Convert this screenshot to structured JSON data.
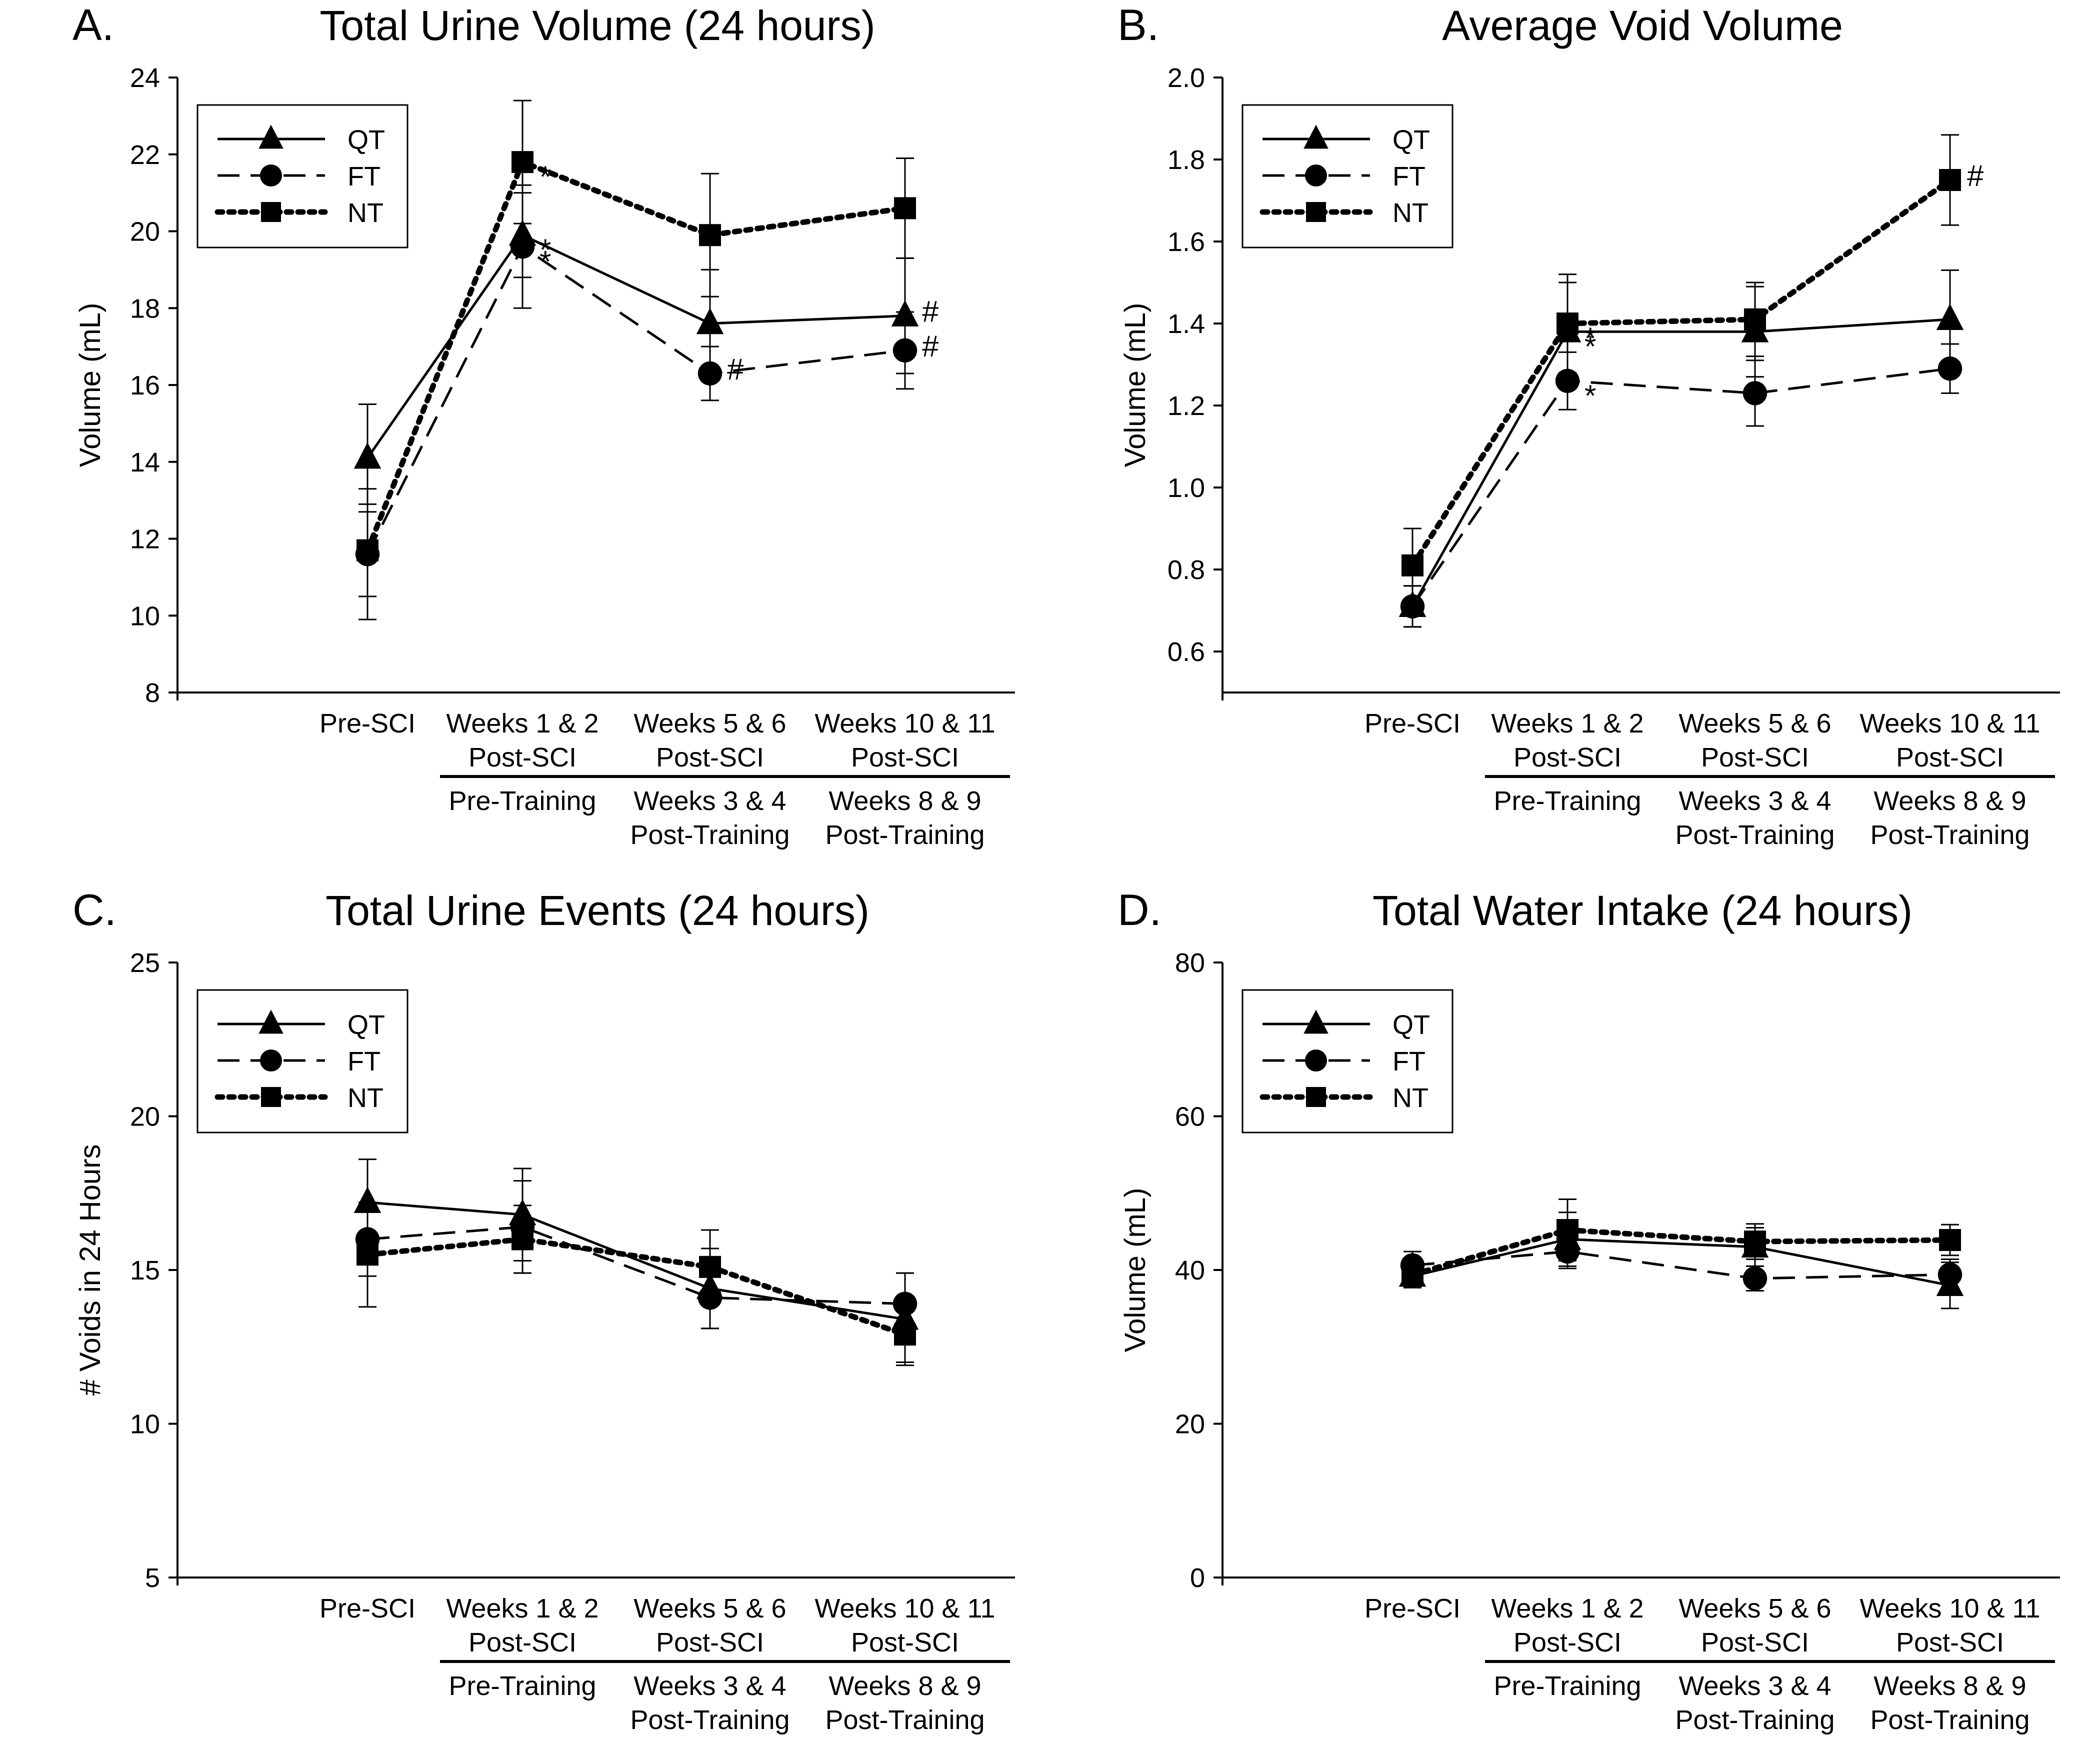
{
  "figure": {
    "panels": [
      "A",
      "B",
      "C",
      "D"
    ]
  },
  "chart_data": [
    {
      "id": "A",
      "letter": "A.",
      "type": "line",
      "title": "Total Urine Volume (24 hours)",
      "ylabel": "Volume (mL)",
      "xlabel": "",
      "ylim": [
        8,
        24
      ],
      "yticks": [
        8,
        10,
        12,
        14,
        16,
        18,
        20,
        22,
        24
      ],
      "categories": [
        [
          "Pre-SCI"
        ],
        [
          "Weeks 1 & 2",
          "Post-SCI"
        ],
        [
          "Weeks 5 & 6",
          "Post-SCI"
        ],
        [
          "Weeks 10 & 11",
          "Post-SCI"
        ]
      ],
      "training_labels": [
        [
          "Pre-Training"
        ],
        [
          "Weeks 3 & 4",
          "Post-Training"
        ],
        [
          "Weeks 8 & 9",
          "Post-Training"
        ]
      ],
      "legend": {
        "position": "top-left",
        "entries": [
          "QT",
          "FT",
          "NT"
        ]
      },
      "series": [
        {
          "name": "QT",
          "marker": "triangle",
          "dash": "solid",
          "values": [
            14.1,
            19.9,
            17.6,
            17.8
          ],
          "errors": [
            1.4,
            1.1,
            1.4,
            1.5
          ]
        },
        {
          "name": "FT",
          "marker": "circle",
          "dash": "dashed",
          "values": [
            11.6,
            19.6,
            16.3,
            16.9
          ],
          "errors": [
            1.7,
            1.6,
            0.7,
            1.0
          ]
        },
        {
          "name": "NT",
          "marker": "square",
          "dash": "dotted",
          "values": [
            11.7,
            21.8,
            19.9,
            20.6
          ],
          "errors": [
            1.2,
            1.6,
            1.6,
            1.3
          ]
        }
      ],
      "annotations": [
        {
          "text": "*",
          "series": "NT",
          "index": 1
        },
        {
          "text": "*",
          "series": "QT",
          "index": 1
        },
        {
          "text": "*",
          "series": "FT",
          "index": 1
        },
        {
          "text": "#",
          "series": "FT",
          "index": 2
        },
        {
          "text": "#",
          "series": "QT",
          "index": 3
        },
        {
          "text": "#",
          "series": "FT",
          "index": 3
        }
      ]
    },
    {
      "id": "B",
      "letter": "B.",
      "type": "line",
      "title": "Average Void Volume",
      "ylabel": "Volume (mL)",
      "xlabel": "",
      "ylim": [
        0.5,
        2.0
      ],
      "yticks": [
        "0.6",
        "0.8",
        "1.0",
        "1.2",
        "1.4",
        "1.6",
        "1.8",
        "2.0"
      ],
      "categories": [
        [
          "Pre-SCI"
        ],
        [
          "Weeks 1 & 2",
          "Post-SCI"
        ],
        [
          "Weeks 5 & 6",
          "Post-SCI"
        ],
        [
          "Weeks 10 & 11",
          "Post-SCI"
        ]
      ],
      "training_labels": [
        [
          "Pre-Training"
        ],
        [
          "Weeks 3 & 4",
          "Post-Training"
        ],
        [
          "Weeks 8 & 9",
          "Post-Training"
        ]
      ],
      "legend": {
        "position": "top-left",
        "entries": [
          "QT",
          "FT",
          "NT"
        ]
      },
      "series": [
        {
          "name": "QT",
          "marker": "triangle",
          "dash": "solid",
          "values": [
            0.71,
            1.38,
            1.38,
            1.41
          ],
          "errors": [
            0.05,
            0.12,
            0.11,
            0.12
          ]
        },
        {
          "name": "FT",
          "marker": "circle",
          "dash": "dashed",
          "values": [
            0.71,
            1.26,
            1.23,
            1.29
          ],
          "errors": [
            0.05,
            0.07,
            0.08,
            0.06
          ]
        },
        {
          "name": "NT",
          "marker": "square",
          "dash": "dotted",
          "values": [
            0.81,
            1.4,
            1.41,
            1.75
          ],
          "errors": [
            0.09,
            0.12,
            0.09,
            0.11
          ]
        }
      ],
      "annotations": [
        {
          "text": "*",
          "series": "NT",
          "index": 1
        },
        {
          "text": "*",
          "series": "QT",
          "index": 1
        },
        {
          "text": "*",
          "series": "FT",
          "index": 1
        },
        {
          "text": "#",
          "series": "NT",
          "index": 3
        }
      ]
    },
    {
      "id": "C",
      "letter": "C.",
      "type": "line",
      "title": "Total Urine Events (24 hours)",
      "ylabel": "# Voids in 24 Hours",
      "xlabel": "",
      "ylim": [
        5,
        25
      ],
      "yticks": [
        5,
        10,
        15,
        20,
        25
      ],
      "categories": [
        [
          "Pre-SCI"
        ],
        [
          "Weeks 1 & 2",
          "Post-SCI"
        ],
        [
          "Weeks 5 & 6",
          "Post-SCI"
        ],
        [
          "Weeks 10 & 11",
          "Post-SCI"
        ]
      ],
      "training_labels": [
        [
          "Pre-Training"
        ],
        [
          "Weeks 3 & 4",
          "Post-Training"
        ],
        [
          "Weeks 8 & 9",
          "Post-Training"
        ]
      ],
      "legend": {
        "position": "top-left",
        "entries": [
          "QT",
          "FT",
          "NT"
        ]
      },
      "series": [
        {
          "name": "QT",
          "marker": "triangle",
          "dash": "solid",
          "values": [
            17.2,
            16.8,
            14.4,
            13.4
          ],
          "errors": [
            1.4,
            1.5,
            1.3,
            1.5
          ]
        },
        {
          "name": "FT",
          "marker": "circle",
          "dash": "dashed",
          "values": [
            16.0,
            16.4,
            14.1,
            13.9
          ],
          "errors": [
            1.2,
            1.5,
            1.0,
            1.0
          ]
        },
        {
          "name": "NT",
          "marker": "square",
          "dash": "dotted",
          "values": [
            15.5,
            16.0,
            15.1,
            12.9
          ],
          "errors": [
            1.7,
            1.1,
            1.2,
            0.9
          ]
        }
      ],
      "annotations": []
    },
    {
      "id": "D",
      "letter": "D.",
      "type": "line",
      "title": "Total Water Intake (24 hours)",
      "ylabel": "Volume (mL)",
      "xlabel": "",
      "ylim": [
        0,
        80
      ],
      "yticks": [
        0,
        20,
        40,
        60,
        80
      ],
      "categories": [
        [
          "Pre-SCI"
        ],
        [
          "Weeks 1 & 2",
          "Post-SCI"
        ],
        [
          "Weeks 5 & 6",
          "Post-SCI"
        ],
        [
          "Weeks 10 & 11",
          "Post-SCI"
        ]
      ],
      "training_labels": [
        [
          "Pre-Training"
        ],
        [
          "Weeks 3 & 4",
          "Post-Training"
        ],
        [
          "Weeks 8 & 9",
          "Post-Training"
        ]
      ],
      "legend": {
        "position": "top-left",
        "entries": [
          "QT",
          "FT",
          "NT"
        ]
      },
      "series": [
        {
          "name": "QT",
          "marker": "triangle",
          "dash": "solid",
          "values": [
            39.2,
            44.0,
            43.0,
            38.0
          ],
          "errors": [
            1.5,
            3.5,
            2.5,
            3.0
          ]
        },
        {
          "name": "FT",
          "marker": "circle",
          "dash": "dashed",
          "values": [
            40.6,
            42.4,
            38.9,
            39.4
          ],
          "errors": [
            1.8,
            2.2,
            1.6,
            2.0
          ]
        },
        {
          "name": "NT",
          "marker": "square",
          "dash": "dotted",
          "values": [
            39.4,
            45.2,
            43.7,
            43.9
          ],
          "errors": [
            1.6,
            4.0,
            2.3,
            2.0
          ]
        }
      ],
      "annotations": []
    }
  ]
}
